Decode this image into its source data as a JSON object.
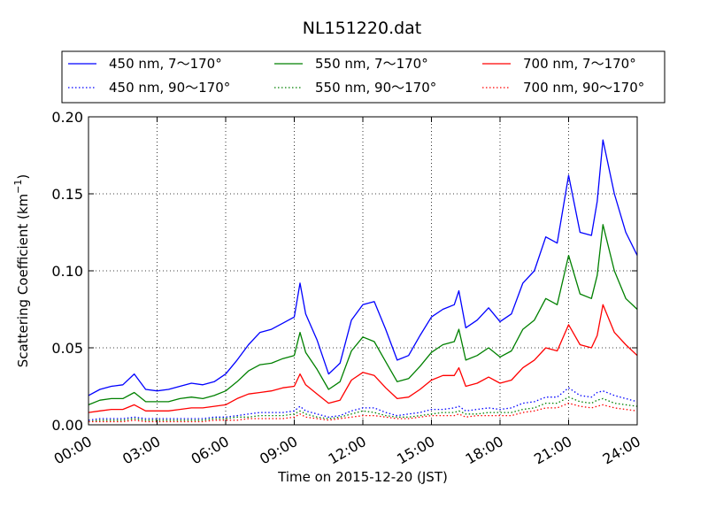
{
  "chart_data": {
    "type": "line",
    "title": "NL151220.dat",
    "xlabel": "Time on 2015-12-20 (JST)",
    "ylabel": "Scattering Coefficient (km",
    "ylabel_sup": "−1",
    "ylabel_end": ")",
    "xlim_hours": [
      0,
      24
    ],
    "ylim": [
      0,
      0.2
    ],
    "grid": true,
    "legend_position": "top",
    "x_ticks": [
      {
        "hour": 0,
        "label": "00:00"
      },
      {
        "hour": 3,
        "label": "03:00"
      },
      {
        "hour": 6,
        "label": "06:00"
      },
      {
        "hour": 9,
        "label": "09:00"
      },
      {
        "hour": 12,
        "label": "12:00"
      },
      {
        "hour": 15,
        "label": "15:00"
      },
      {
        "hour": 18,
        "label": "18:00"
      },
      {
        "hour": 21,
        "label": "21:00"
      },
      {
        "hour": 24,
        "label": "24:00"
      }
    ],
    "y_ticks": [
      {
        "value": 0.0,
        "label": "0.00"
      },
      {
        "value": 0.05,
        "label": "0.05"
      },
      {
        "value": 0.1,
        "label": "0.10"
      },
      {
        "value": 0.15,
        "label": "0.15"
      },
      {
        "value": 0.2,
        "label": "0.20"
      }
    ],
    "x": [
      0,
      0.5,
      1,
      1.5,
      2,
      2.5,
      3,
      3.5,
      4,
      4.5,
      5,
      5.5,
      6,
      6.5,
      7,
      7.5,
      8,
      8.5,
      9,
      9.25,
      9.5,
      10,
      10.5,
      11,
      11.5,
      12,
      12.5,
      13,
      13.5,
      14,
      14.5,
      15,
      15.5,
      16,
      16.2,
      16.5,
      17,
      17.5,
      18,
      18.5,
      19,
      19.5,
      20,
      20.5,
      21,
      21.5,
      22,
      22.25,
      22.5,
      23,
      23.5,
      24
    ],
    "series": [
      {
        "name": "450 nm, 7～170°",
        "color": "#0000ff",
        "style": "solid",
        "values": [
          0.019,
          0.023,
          0.025,
          0.026,
          0.033,
          0.023,
          0.022,
          0.023,
          0.025,
          0.027,
          0.026,
          0.028,
          0.033,
          0.042,
          0.052,
          0.06,
          0.062,
          0.066,
          0.07,
          0.092,
          0.072,
          0.055,
          0.033,
          0.04,
          0.068,
          0.078,
          0.08,
          0.062,
          0.042,
          0.045,
          0.058,
          0.07,
          0.075,
          0.078,
          0.087,
          0.063,
          0.068,
          0.076,
          0.067,
          0.072,
          0.092,
          0.1,
          0.122,
          0.118,
          0.162,
          0.125,
          0.123,
          0.145,
          0.185,
          0.15,
          0.125,
          0.11
        ]
      },
      {
        "name": "550 nm, 7～170°",
        "color": "#008000",
        "style": "solid",
        "values": [
          0.013,
          0.016,
          0.017,
          0.017,
          0.021,
          0.015,
          0.015,
          0.015,
          0.017,
          0.018,
          0.017,
          0.019,
          0.022,
          0.028,
          0.035,
          0.039,
          0.04,
          0.043,
          0.045,
          0.06,
          0.047,
          0.036,
          0.023,
          0.028,
          0.048,
          0.057,
          0.054,
          0.041,
          0.028,
          0.03,
          0.038,
          0.047,
          0.052,
          0.054,
          0.062,
          0.042,
          0.045,
          0.05,
          0.044,
          0.048,
          0.062,
          0.068,
          0.082,
          0.078,
          0.11,
          0.085,
          0.082,
          0.097,
          0.13,
          0.1,
          0.082,
          0.075
        ]
      },
      {
        "name": "700 nm, 7～170°",
        "color": "#ff0000",
        "style": "solid",
        "values": [
          0.008,
          0.009,
          0.01,
          0.01,
          0.013,
          0.009,
          0.009,
          0.009,
          0.01,
          0.011,
          0.011,
          0.012,
          0.013,
          0.017,
          0.02,
          0.021,
          0.022,
          0.024,
          0.025,
          0.033,
          0.026,
          0.02,
          0.014,
          0.016,
          0.029,
          0.034,
          0.032,
          0.024,
          0.017,
          0.018,
          0.023,
          0.029,
          0.032,
          0.032,
          0.037,
          0.025,
          0.027,
          0.031,
          0.027,
          0.029,
          0.037,
          0.042,
          0.05,
          0.048,
          0.065,
          0.052,
          0.05,
          0.058,
          0.078,
          0.06,
          0.052,
          0.045
        ]
      },
      {
        "name": "450 nm, 90～170°",
        "color": "#0000ff",
        "style": "dotted",
        "values": [
          0.003,
          0.004,
          0.004,
          0.004,
          0.005,
          0.004,
          0.004,
          0.004,
          0.004,
          0.004,
          0.004,
          0.005,
          0.005,
          0.006,
          0.007,
          0.008,
          0.008,
          0.008,
          0.009,
          0.012,
          0.009,
          0.007,
          0.005,
          0.006,
          0.009,
          0.011,
          0.011,
          0.008,
          0.006,
          0.007,
          0.008,
          0.01,
          0.01,
          0.011,
          0.012,
          0.009,
          0.01,
          0.011,
          0.01,
          0.011,
          0.014,
          0.015,
          0.018,
          0.018,
          0.024,
          0.019,
          0.018,
          0.021,
          0.022,
          0.019,
          0.017,
          0.015
        ]
      },
      {
        "name": "550 nm, 90～170°",
        "color": "#008000",
        "style": "dotted",
        "values": [
          0.002,
          0.003,
          0.003,
          0.003,
          0.004,
          0.003,
          0.003,
          0.003,
          0.003,
          0.003,
          0.003,
          0.004,
          0.004,
          0.005,
          0.005,
          0.006,
          0.006,
          0.006,
          0.007,
          0.009,
          0.007,
          0.005,
          0.004,
          0.005,
          0.007,
          0.009,
          0.008,
          0.006,
          0.005,
          0.005,
          0.006,
          0.007,
          0.008,
          0.008,
          0.009,
          0.007,
          0.007,
          0.008,
          0.008,
          0.008,
          0.01,
          0.011,
          0.014,
          0.014,
          0.018,
          0.015,
          0.014,
          0.016,
          0.017,
          0.014,
          0.013,
          0.012
        ]
      },
      {
        "name": "700 nm, 90～170°",
        "color": "#ff0000",
        "style": "dotted",
        "values": [
          0.002,
          0.002,
          0.002,
          0.002,
          0.003,
          0.002,
          0.002,
          0.002,
          0.002,
          0.002,
          0.002,
          0.003,
          0.003,
          0.003,
          0.004,
          0.004,
          0.004,
          0.004,
          0.005,
          0.007,
          0.005,
          0.004,
          0.003,
          0.004,
          0.005,
          0.006,
          0.006,
          0.005,
          0.004,
          0.004,
          0.005,
          0.006,
          0.006,
          0.006,
          0.007,
          0.005,
          0.006,
          0.006,
          0.006,
          0.006,
          0.008,
          0.009,
          0.011,
          0.011,
          0.014,
          0.012,
          0.011,
          0.012,
          0.013,
          0.011,
          0.01,
          0.009
        ]
      }
    ]
  }
}
